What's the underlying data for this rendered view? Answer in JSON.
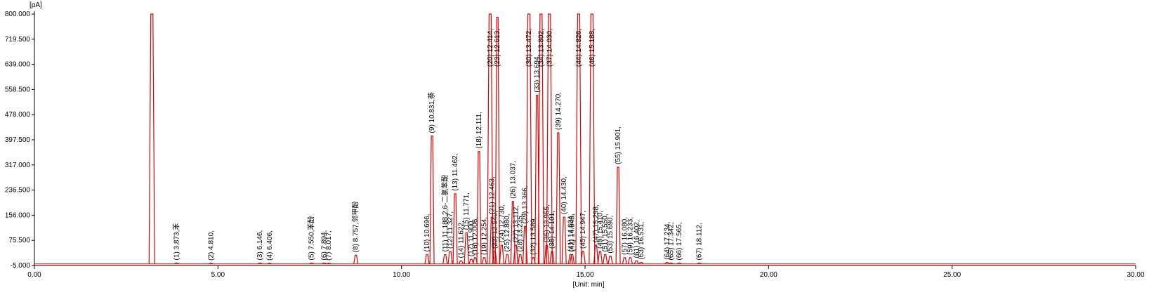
{
  "chart_data": {
    "type": "chromatogram",
    "y_unit": "[pA]",
    "x_unit": "[Unit: min]",
    "color": "#e00000",
    "axis_color": "#000000",
    "xlim": [
      0,
      30
    ],
    "xticks": [
      {
        "value": 0,
        "label": "0.00"
      },
      {
        "value": 5,
        "label": "5.00"
      },
      {
        "value": 10,
        "label": "10.00"
      },
      {
        "value": 15,
        "label": "15.00"
      },
      {
        "value": 20,
        "label": "20.00"
      },
      {
        "value": 25,
        "label": "25.00"
      },
      {
        "value": 30,
        "label": "30.00"
      }
    ],
    "ylim": [
      -5,
      800
    ],
    "yticks": [
      {
        "value": -5,
        "label": "-5.000"
      },
      {
        "value": 75.5,
        "label": "75.500"
      },
      {
        "value": 156,
        "label": "156.000"
      },
      {
        "value": 236.5,
        "label": "236.500"
      },
      {
        "value": 317,
        "label": "317.000"
      },
      {
        "value": 397.5,
        "label": "397.500"
      },
      {
        "value": 478,
        "label": "478.000"
      },
      {
        "value": 558.5,
        "label": "558.500"
      },
      {
        "value": 639,
        "label": "639.000"
      },
      {
        "value": 719.5,
        "label": "719.500"
      },
      {
        "value": 800,
        "label": "800.000"
      }
    ],
    "peaks": [
      {
        "x": 3.2,
        "height": 800
      },
      {
        "x": 3.873,
        "height": 3,
        "label": "(1) 3.873,苯"
      },
      {
        "x": 4.81,
        "height": 2,
        "label": "(2) 4.810,"
      },
      {
        "x": 6.146,
        "height": 3,
        "label": "(3) 6.146,"
      },
      {
        "x": 6.406,
        "height": 2,
        "label": "(4) 6.406,"
      },
      {
        "x": 7.55,
        "height": 3,
        "label": "(5) 7.550,苯酚"
      },
      {
        "x": 7.894,
        "height": 3,
        "label": "(6) 7.894,"
      },
      {
        "x": 8.017,
        "height": 2,
        "label": "(7) 8.017,"
      },
      {
        "x": 8.757,
        "height": 28,
        "label": "(8) 8.757,邻甲酚"
      },
      {
        "x": 10.696,
        "height": 30,
        "label": "(10) 10.696,"
      },
      {
        "x": 10.831,
        "height": 410,
        "label": "(9) 10.831,萘"
      },
      {
        "x": 11.188,
        "height": 30,
        "label": "(11) 11.188,2,6-二氯苯酚"
      },
      {
        "x": 11.327,
        "height": 40,
        "label": "(12) 11.327,"
      },
      {
        "x": 11.462,
        "height": 225,
        "label": "(13) 11.462,"
      },
      {
        "x": 11.622,
        "height": 10,
        "label": "(14) 11.622,"
      },
      {
        "x": 11.771,
        "height": 100,
        "label": "(15) 11.771,"
      },
      {
        "x": 11.9,
        "height": 15,
        "label": "(17) 11.900,"
      },
      {
        "x": 12.006,
        "height": 20,
        "label": "(16) 12.006,"
      },
      {
        "x": 12.111,
        "height": 360,
        "label": "(18) 12.111,"
      },
      {
        "x": 12.254,
        "height": 20,
        "label": "(19) 12.254,"
      },
      {
        "x": 12.414,
        "height": 800,
        "label": "(20) 12.414,"
      },
      {
        "x": 12.463,
        "height": 150,
        "label": "(21) 12.463,"
      },
      {
        "x": 12.54,
        "height": 40,
        "label": "(22) 12.540,"
      },
      {
        "x": 12.613,
        "height": 790,
        "label": "(23) 12.613,"
      },
      {
        "x": 12.73,
        "height": 60,
        "label": "(24) 12.730,"
      },
      {
        "x": 12.88,
        "height": 30,
        "label": "(25) 12.880,"
      },
      {
        "x": 13.037,
        "height": 200,
        "label": "(26) 13.037,"
      },
      {
        "x": 13.112,
        "height": 60,
        "label": "(27) 13.112,"
      },
      {
        "x": 13.235,
        "height": 30,
        "label": "(28) 13.235,"
      },
      {
        "x": 13.366,
        "height": 120,
        "label": "(29) 13.366,"
      },
      {
        "x": 13.472,
        "height": 800,
        "label": "(30) 13.472,"
      },
      {
        "x": 13.589,
        "height": 20,
        "label": "(32) 13.589,"
      },
      {
        "x": 13.694,
        "height": 540,
        "label": "(33) 13.694,"
      },
      {
        "x": 13.802,
        "height": 800,
        "label": "(34) 13.802,"
      },
      {
        "x": 13.955,
        "height": 60,
        "label": "(35) 13.955,"
      },
      {
        "x": 14.03,
        "height": 800,
        "label": "(37) 14.030,"
      },
      {
        "x": 14.101,
        "height": 40,
        "label": "(38) 14.101,"
      },
      {
        "x": 14.27,
        "height": 420,
        "label": "(39) 14.270,"
      },
      {
        "x": 14.43,
        "height": 150,
        "label": "(40) 14.430,"
      },
      {
        "x": 14.604,
        "height": 30,
        "label": "(41) 14.604,"
      },
      {
        "x": 14.648,
        "height": 30,
        "label": "(42) 14.648,"
      },
      {
        "x": 14.826,
        "height": 800,
        "label": "(44) 14.826,"
      },
      {
        "x": 14.947,
        "height": 40,
        "label": "(45) 14.947,"
      },
      {
        "x": 15.188,
        "height": 800,
        "label": "(46) 15.188,"
      },
      {
        "x": 15.298,
        "height": 60,
        "label": "(47) 15.298,"
      },
      {
        "x": 15.41,
        "height": 40,
        "label": "(49) 15.410,"
      },
      {
        "x": 15.55,
        "height": 30,
        "label": "(51) 15.550,"
      },
      {
        "x": 15.69,
        "height": 25,
        "label": "(53) 15.690,"
      },
      {
        "x": 15.901,
        "height": 310,
        "label": "(55) 15.901,"
      },
      {
        "x": 16.08,
        "height": 20,
        "label": "(57) 16.080,"
      },
      {
        "x": 16.233,
        "height": 20,
        "label": "(59) 16.233,"
      },
      {
        "x": 16.402,
        "height": 10,
        "label": "(61) 16.402,"
      },
      {
        "x": 16.531,
        "height": 5,
        "label": "(63) 16.531,"
      },
      {
        "x": 17.234,
        "height": 5,
        "label": "(64) 17.234,"
      },
      {
        "x": 17.342,
        "height": 3,
        "label": "(65) 17.342,"
      },
      {
        "x": 17.565,
        "height": 3,
        "label": "(66) 17.565,"
      },
      {
        "x": 18.112,
        "height": 3,
        "label": "(67) 18.112,"
      }
    ]
  }
}
